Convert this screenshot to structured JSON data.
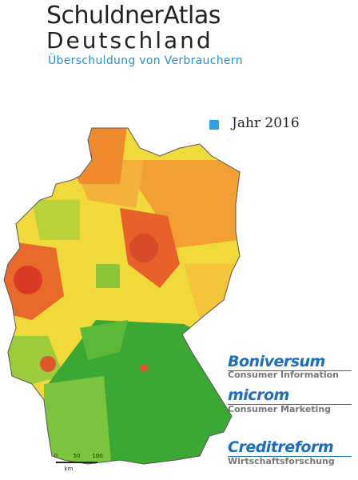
{
  "header": {
    "title_line1": "SchuldnerAtlas",
    "title_line2": "Deutschland",
    "subtitle": "Überschuldung von Verbrauchern"
  },
  "year_label": "Jahr 2016",
  "logos": [
    {
      "name": "Boniversum",
      "tagline": "Consumer Information"
    },
    {
      "name": "microm",
      "tagline": "Consumer Marketing"
    },
    {
      "name": "Creditreform",
      "tagline": "Wirtschaftsforschung"
    }
  ],
  "scale": {
    "ticks": [
      0,
      50,
      100
    ],
    "unit": "km"
  }
}
